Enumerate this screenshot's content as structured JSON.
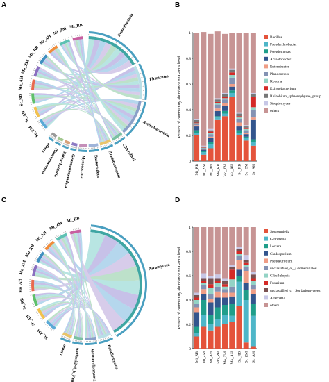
{
  "panels": {
    "A": {
      "letter": "A"
    },
    "B": {
      "letter": "B"
    },
    "C": {
      "letter": "C"
    },
    "D": {
      "letter": "D"
    }
  },
  "chart_data": [
    {
      "panel": "A",
      "type": "chord",
      "sample_labels": [
        "Sc_ZM",
        "Sc_AH",
        "Sc_RB",
        "Mo_AH",
        "Mo_ZM",
        "Mo_RB",
        "Mi_AH",
        "Mi_ZM",
        "Mi_RB"
      ],
      "taxon_labels": [
        "Proteobacteria",
        "Firmicutes",
        "Actinobacteriota",
        "Chloroflexi",
        "Acidobacteriota",
        "Bacteroidota",
        "Myxococcota",
        "Gemmatimonadota",
        "Patescibacteria",
        "Planctomycetota",
        "others"
      ]
    },
    {
      "panel": "B",
      "type": "bar",
      "stacked": true,
      "categories": [
        "Mi_RB",
        "Mi_ZM",
        "Mi_AH",
        "Mo_RB",
        "Mo_ZM",
        "Mo_AH",
        "Sc_RB",
        "Sc_ZM",
        "Sc_AH"
      ],
      "ylabel": "Percent of community abundance on Genus level",
      "ylim": [
        0,
        1
      ],
      "yticks": [
        "0",
        "0.2",
        "0.4",
        "0.6",
        "0.8",
        "1"
      ],
      "legend_position": "right",
      "series": [
        {
          "name": "Bacillus",
          "color": "#e4533b",
          "values": [
            0.2,
            0.05,
            0.1,
            0.32,
            0.35,
            0.5,
            0.2,
            0.16,
            0.12
          ]
        },
        {
          "name": "Pseudarthrobacter",
          "color": "#4eb6c8",
          "values": [
            0.02,
            0.02,
            0.03,
            0.02,
            0.02,
            0.03,
            0.02,
            0.02,
            0.03
          ]
        },
        {
          "name": "Pseudomonas",
          "color": "#1f9e8a",
          "values": [
            0.02,
            0.01,
            0.02,
            0.01,
            0.02,
            0.02,
            0.02,
            0.01,
            0.02
          ]
        },
        {
          "name": "Acinetobacter",
          "color": "#33558d",
          "values": [
            0.03,
            0.01,
            0.03,
            0.04,
            0.04,
            0.03,
            0.03,
            0.02,
            0.15
          ]
        },
        {
          "name": "Enterobacter",
          "color": "#ef9d86",
          "values": [
            0.01,
            0.005,
            0.01,
            0.02,
            0.02,
            0.02,
            0.03,
            0.01,
            0.02
          ]
        },
        {
          "name": "Planococcus",
          "color": "#8492b3",
          "values": [
            0.01,
            0.005,
            0.02,
            0.03,
            0.03,
            0.05,
            0.03,
            0.02,
            0.06
          ]
        },
        {
          "name": "Kocuria",
          "color": "#93d3c5",
          "values": [
            0.005,
            0.005,
            0.01,
            0.01,
            0.01,
            0.02,
            0.01,
            0.01,
            0.02
          ]
        },
        {
          "name": "Exiguobacterium",
          "color": "#d42a27",
          "values": [
            0.005,
            0.005,
            0.01,
            0.01,
            0.01,
            0.02,
            0.01,
            0.01,
            0.08
          ]
        },
        {
          "name": "Rhizobium_sphaerophysae_group",
          "color": "#777777",
          "values": [
            0.02,
            0.005,
            0.01,
            0.02,
            0.02,
            0.02,
            0.02,
            0.01,
            0.02
          ]
        },
        {
          "name": "Streptomyces",
          "color": "#c7c7e6",
          "values": [
            0.005,
            0.005,
            0.01,
            0.01,
            0.01,
            0.01,
            0.01,
            0.01,
            0.01
          ]
        },
        {
          "name": "others",
          "color": "#c79494",
          "values": [
            0.675,
            0.885,
            0.74,
            0.52,
            0.46,
            0.28,
            0.62,
            0.72,
            0.47
          ]
        }
      ]
    },
    {
      "panel": "C",
      "type": "chord",
      "sample_labels": [
        "Sc_ZM",
        "Sc_AH",
        "Sc_RB",
        "Mo_AH",
        "Mo_ZM",
        "Mo_RB",
        "Mi_AH",
        "Mi_ZM",
        "Mi_RB"
      ],
      "taxon_labels": [
        "Ascomycota",
        "Basidiomycota",
        "Mortierellomycota",
        "unclassified_k_Fungi",
        "others"
      ]
    },
    {
      "panel": "D",
      "type": "bar",
      "stacked": true,
      "categories": [
        "Mi_RB",
        "Mi_ZM",
        "Mi_AH",
        "Mo_RB",
        "Mo_ZM",
        "Mo_AH",
        "Sc_RB",
        "Sc_ZM",
        "Sc_AH"
      ],
      "ylabel": "Percent of community abundance on Genus level",
      "ylim": [
        0,
        1
      ],
      "yticks": [
        "0",
        "0.2",
        "0.4",
        "0.6",
        "0.8",
        "1"
      ],
      "legend_position": "right",
      "series": [
        {
          "name": "Sporormiella",
          "color": "#e4533b",
          "values": [
            0.1,
            0.18,
            0.15,
            0.18,
            0.2,
            0.22,
            0.35,
            0.05,
            0.02
          ]
        },
        {
          "name": "Gibberella",
          "color": "#4eb6c8",
          "values": [
            0.03,
            0.1,
            0.05,
            0.06,
            0.08,
            0.05,
            0.2,
            0.35,
            0.25
          ]
        },
        {
          "name": "Lectera",
          "color": "#1f9e8a",
          "values": [
            0.05,
            0.12,
            0.08,
            0.1,
            0.08,
            0.1,
            0.05,
            0.08,
            0.1
          ]
        },
        {
          "name": "Cladosporium",
          "color": "#33558d",
          "values": [
            0.12,
            0.05,
            0.1,
            0.08,
            0.06,
            0.06,
            0.05,
            0.06,
            0.08
          ]
        },
        {
          "name": "Pseudeurotium",
          "color": "#ef9d86",
          "values": [
            0.04,
            0.04,
            0.03,
            0.05,
            0.04,
            0.03,
            0.08,
            0.1,
            0.04
          ]
        },
        {
          "name": "unclassified_o__Glomerellales",
          "color": "#8492b3",
          "values": [
            0.03,
            0.03,
            0.04,
            0.04,
            0.03,
            0.05,
            0.03,
            0.03,
            0.03
          ]
        },
        {
          "name": "Gibellulopsis",
          "color": "#93d3c5",
          "values": [
            0.03,
            0.02,
            0.05,
            0.03,
            0.02,
            0.06,
            0.02,
            0.02,
            0.04
          ]
        },
        {
          "name": "Fusarium",
          "color": "#d42a27",
          "values": [
            0.02,
            0.02,
            0.03,
            0.02,
            0.02,
            0.08,
            0.02,
            0.02,
            0.02
          ]
        },
        {
          "name": "unclassified_c__Sordariomycetes",
          "color": "#7a5151",
          "values": [
            0.02,
            0.02,
            0.05,
            0.02,
            0.03,
            0.02,
            0.02,
            0.02,
            0.03
          ]
        },
        {
          "name": "Alternaria",
          "color": "#c7c7e6",
          "values": [
            0.02,
            0.04,
            0.02,
            0.03,
            0.02,
            0.02,
            0.02,
            0.04,
            0.02
          ]
        },
        {
          "name": "others",
          "color": "#c79494",
          "values": [
            0.54,
            0.38,
            0.4,
            0.39,
            0.42,
            0.31,
            0.16,
            0.23,
            0.37
          ]
        }
      ]
    }
  ]
}
